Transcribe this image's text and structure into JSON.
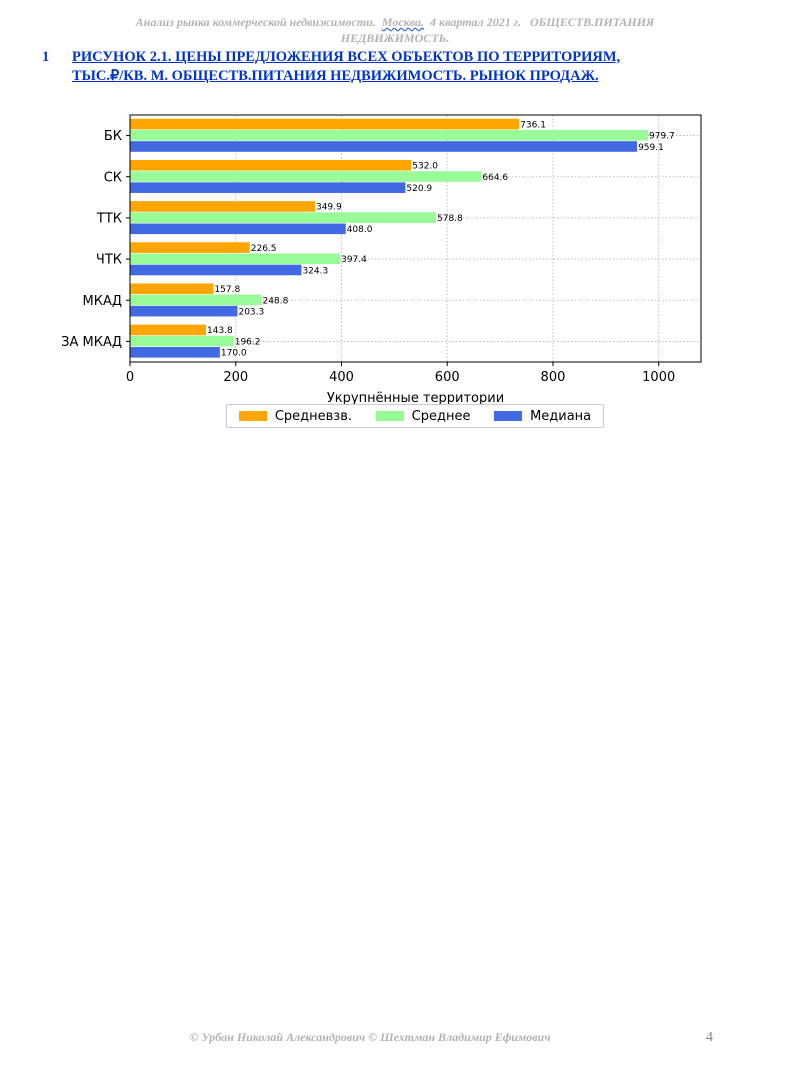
{
  "header": {
    "part1": "Анализ рынка коммерческой недвижимости.",
    "city": "Москва.",
    "part2": "4 квартал 2021 г.",
    "part3": "ОБЩЕСТВ.ПИТАНИЯ",
    "part4": "НЕДВИЖИМОСТЬ."
  },
  "caption": {
    "number": "1",
    "line1": "РИСУНОК 2.1. ЦЕНЫ ПРЕДЛОЖЕНИЯ ВСЕХ ОБЪЕКТОВ ПО ТЕРРИТОРИЯМ,",
    "line2": "ТЫС.₽/КВ. М. ОБЩЕСТВ.ПИТАНИЯ НЕДВИЖИМОСТЬ. РЫНОК ПРОДАЖ."
  },
  "chart_data": {
    "type": "bar",
    "orientation": "horizontal",
    "categories": [
      "БК",
      "СК",
      "ТТК",
      "ЧТК",
      "МКАД",
      "ЗА МКАД"
    ],
    "series": [
      {
        "name": "Средневзв.",
        "color": "#FFA500",
        "values": [
          736.1,
          532.0,
          349.9,
          226.5,
          157.8,
          143.8
        ]
      },
      {
        "name": "Среднее",
        "color": "#98FB98",
        "values": [
          979.7,
          664.6,
          578.8,
          397.4,
          248.8,
          196.2
        ]
      },
      {
        "name": "Медиана",
        "color": "#4169E1",
        "values": [
          959.1,
          520.9,
          408.0,
          324.3,
          203.3,
          170.0
        ]
      }
    ],
    "xlabel": "Укрупнённые территории",
    "ylabel": "",
    "xlim": [
      0,
      1080
    ],
    "xticks": [
      0,
      200,
      400,
      600,
      800,
      1000
    ],
    "grid": true,
    "legend_position": "bottom"
  },
  "footer": {
    "authors": "© Урбан Николай Александрович   © Шехтман Владимир Ефимович",
    "page": "4"
  }
}
